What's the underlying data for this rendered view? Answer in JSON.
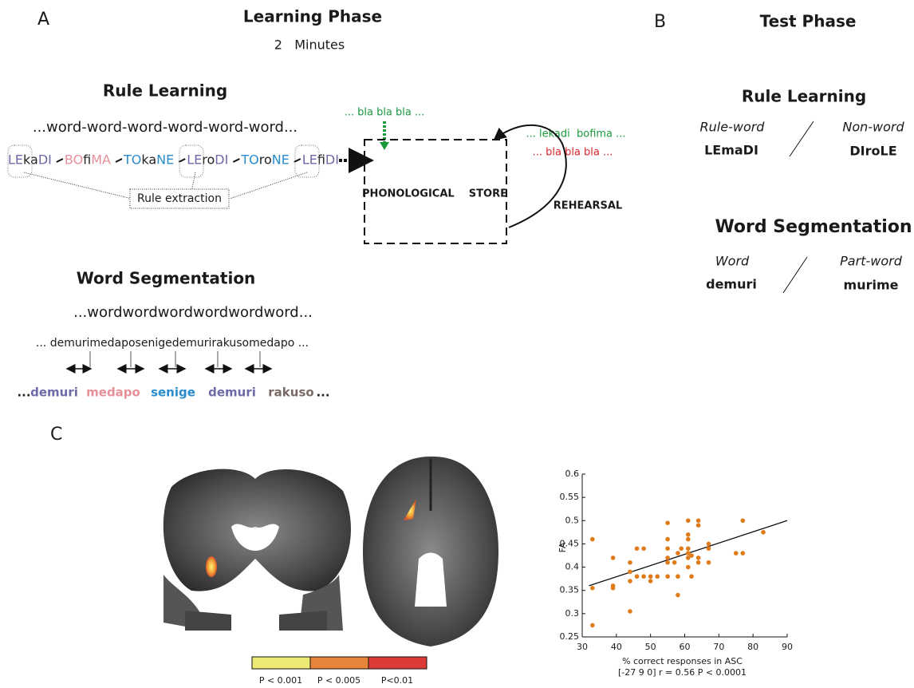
{
  "panel_a": {
    "label": "A",
    "title": "Learning Phase",
    "subtitle": "2   Minutes",
    "rule_learning": {
      "title": "Rule Learning",
      "stream": "...word-word-word-word-word-word...",
      "words": [
        [
          {
            "text": "LE",
            "color": "#6d6aa8"
          },
          {
            "text": "ka",
            "color": "#222222"
          },
          {
            "text": "DI",
            "color": "#6d6aa8"
          }
        ],
        [
          {
            "text": "BO",
            "color": "#e8909a"
          },
          {
            "text": "fi",
            "color": "#222222"
          },
          {
            "text": "MA",
            "color": "#e8909a"
          }
        ],
        [
          {
            "text": "TO",
            "color": "#2a8ccc"
          },
          {
            "text": "ka",
            "color": "#222222"
          },
          {
            "text": "NE",
            "color": "#2a8ccc"
          }
        ],
        [
          {
            "text": "LE",
            "color": "#6d6aa8"
          },
          {
            "text": "ro",
            "color": "#222222"
          },
          {
            "text": "DI",
            "color": "#6d6aa8"
          }
        ],
        [
          {
            "text": "TO",
            "color": "#2a8ccc"
          },
          {
            "text": "ro",
            "color": "#222222"
          },
          {
            "text": "NE",
            "color": "#2a8ccc"
          }
        ],
        [
          {
            "text": "LE",
            "color": "#6d6aa8"
          },
          {
            "text": "fi",
            "color": "#222222"
          },
          {
            "text": "DI",
            "color": "#6d6aa8"
          }
        ]
      ],
      "extraction": "Rule extraction"
    },
    "store": {
      "input": "... bla bla bla ...",
      "label": "PHONOLOGICAL    STORE",
      "heard": "... lekadi  bofima ...",
      "echo": "... bla bla bla ...",
      "rehearsal": "REHEARSAL"
    },
    "word_segmentation": {
      "title": "Word Segmentation",
      "stream": "...wordwordwordwordwordword...",
      "syllables": "... demurimedaposenigedemurirakusomedapo ...",
      "row": [
        {
          "text": "...",
          "color": "#222222"
        },
        {
          "text": "demuri",
          "color": "#6d6aa8"
        },
        {
          "text": "medapo",
          "color": "#e8909a"
        },
        {
          "text": "senige",
          "color": "#2a8ccc"
        },
        {
          "text": "demuri",
          "color": "#6d6aa8"
        },
        {
          "text": "rakuso",
          "color": "#7a6a66"
        },
        {
          "text": "...",
          "color": "#222222"
        }
      ]
    }
  },
  "panel_b": {
    "label": "B",
    "title": "Test Phase",
    "rule_learning": {
      "title": "Rule Learning",
      "left_type": "Rule-word",
      "left_item": "LEmaDI",
      "right_type": "Non-word",
      "right_item": "DIroLE"
    },
    "word_segmentation": {
      "title": "Word Segmentation",
      "left_type": "Word",
      "left_item": "demuri",
      "right_type": "Part-word",
      "right_item": "murime"
    }
  },
  "panel_c": {
    "label": "C",
    "colorbar": [
      {
        "label": "P < 0.001",
        "color": "#ecea74"
      },
      {
        "label": "P < 0.005",
        "color": "#e8843a"
      },
      {
        "label": "P<0.01",
        "color": "#dc3b38"
      }
    ]
  },
  "chart_data": {
    "type": "scatter",
    "x_label": "% correct responses in ASC",
    "y_label": "FA",
    "note": "[-27 9 0]  r = 0.56  P < 0.0001",
    "color": "#e07b1a",
    "x": [
      33,
      33,
      33,
      39,
      39,
      39,
      44,
      44,
      44,
      44,
      46,
      46,
      48,
      48,
      50,
      50,
      52,
      55,
      55,
      55,
      55,
      55,
      55,
      57,
      58,
      58,
      58,
      59,
      61,
      61,
      61,
      61,
      61,
      61,
      61,
      62,
      62,
      64,
      64,
      64,
      64,
      67,
      67,
      67,
      75,
      77,
      77,
      83
    ],
    "values": [
      0.46,
      0.355,
      0.275,
      0.42,
      0.36,
      0.355,
      0.41,
      0.39,
      0.37,
      0.305,
      0.44,
      0.38,
      0.44,
      0.38,
      0.38,
      0.37,
      0.38,
      0.495,
      0.46,
      0.44,
      0.42,
      0.38,
      0.41,
      0.41,
      0.38,
      0.34,
      0.43,
      0.44,
      0.5,
      0.47,
      0.46,
      0.44,
      0.43,
      0.42,
      0.4,
      0.38,
      0.425,
      0.49,
      0.5,
      0.42,
      0.41,
      0.45,
      0.44,
      0.41,
      0.43,
      0.5,
      0.43,
      0.475
    ],
    "trend": {
      "x": [
        32,
        90
      ],
      "values": [
        0.36,
        0.5
      ]
    },
    "xlim": [
      30,
      90
    ],
    "ylim": [
      0.25,
      0.6
    ],
    "xticks": [
      30,
      40,
      50,
      60,
      70,
      80,
      90
    ],
    "yticks": [
      0.25,
      0.3,
      0.35,
      0.4,
      0.45,
      0.5,
      0.55,
      0.6
    ]
  }
}
